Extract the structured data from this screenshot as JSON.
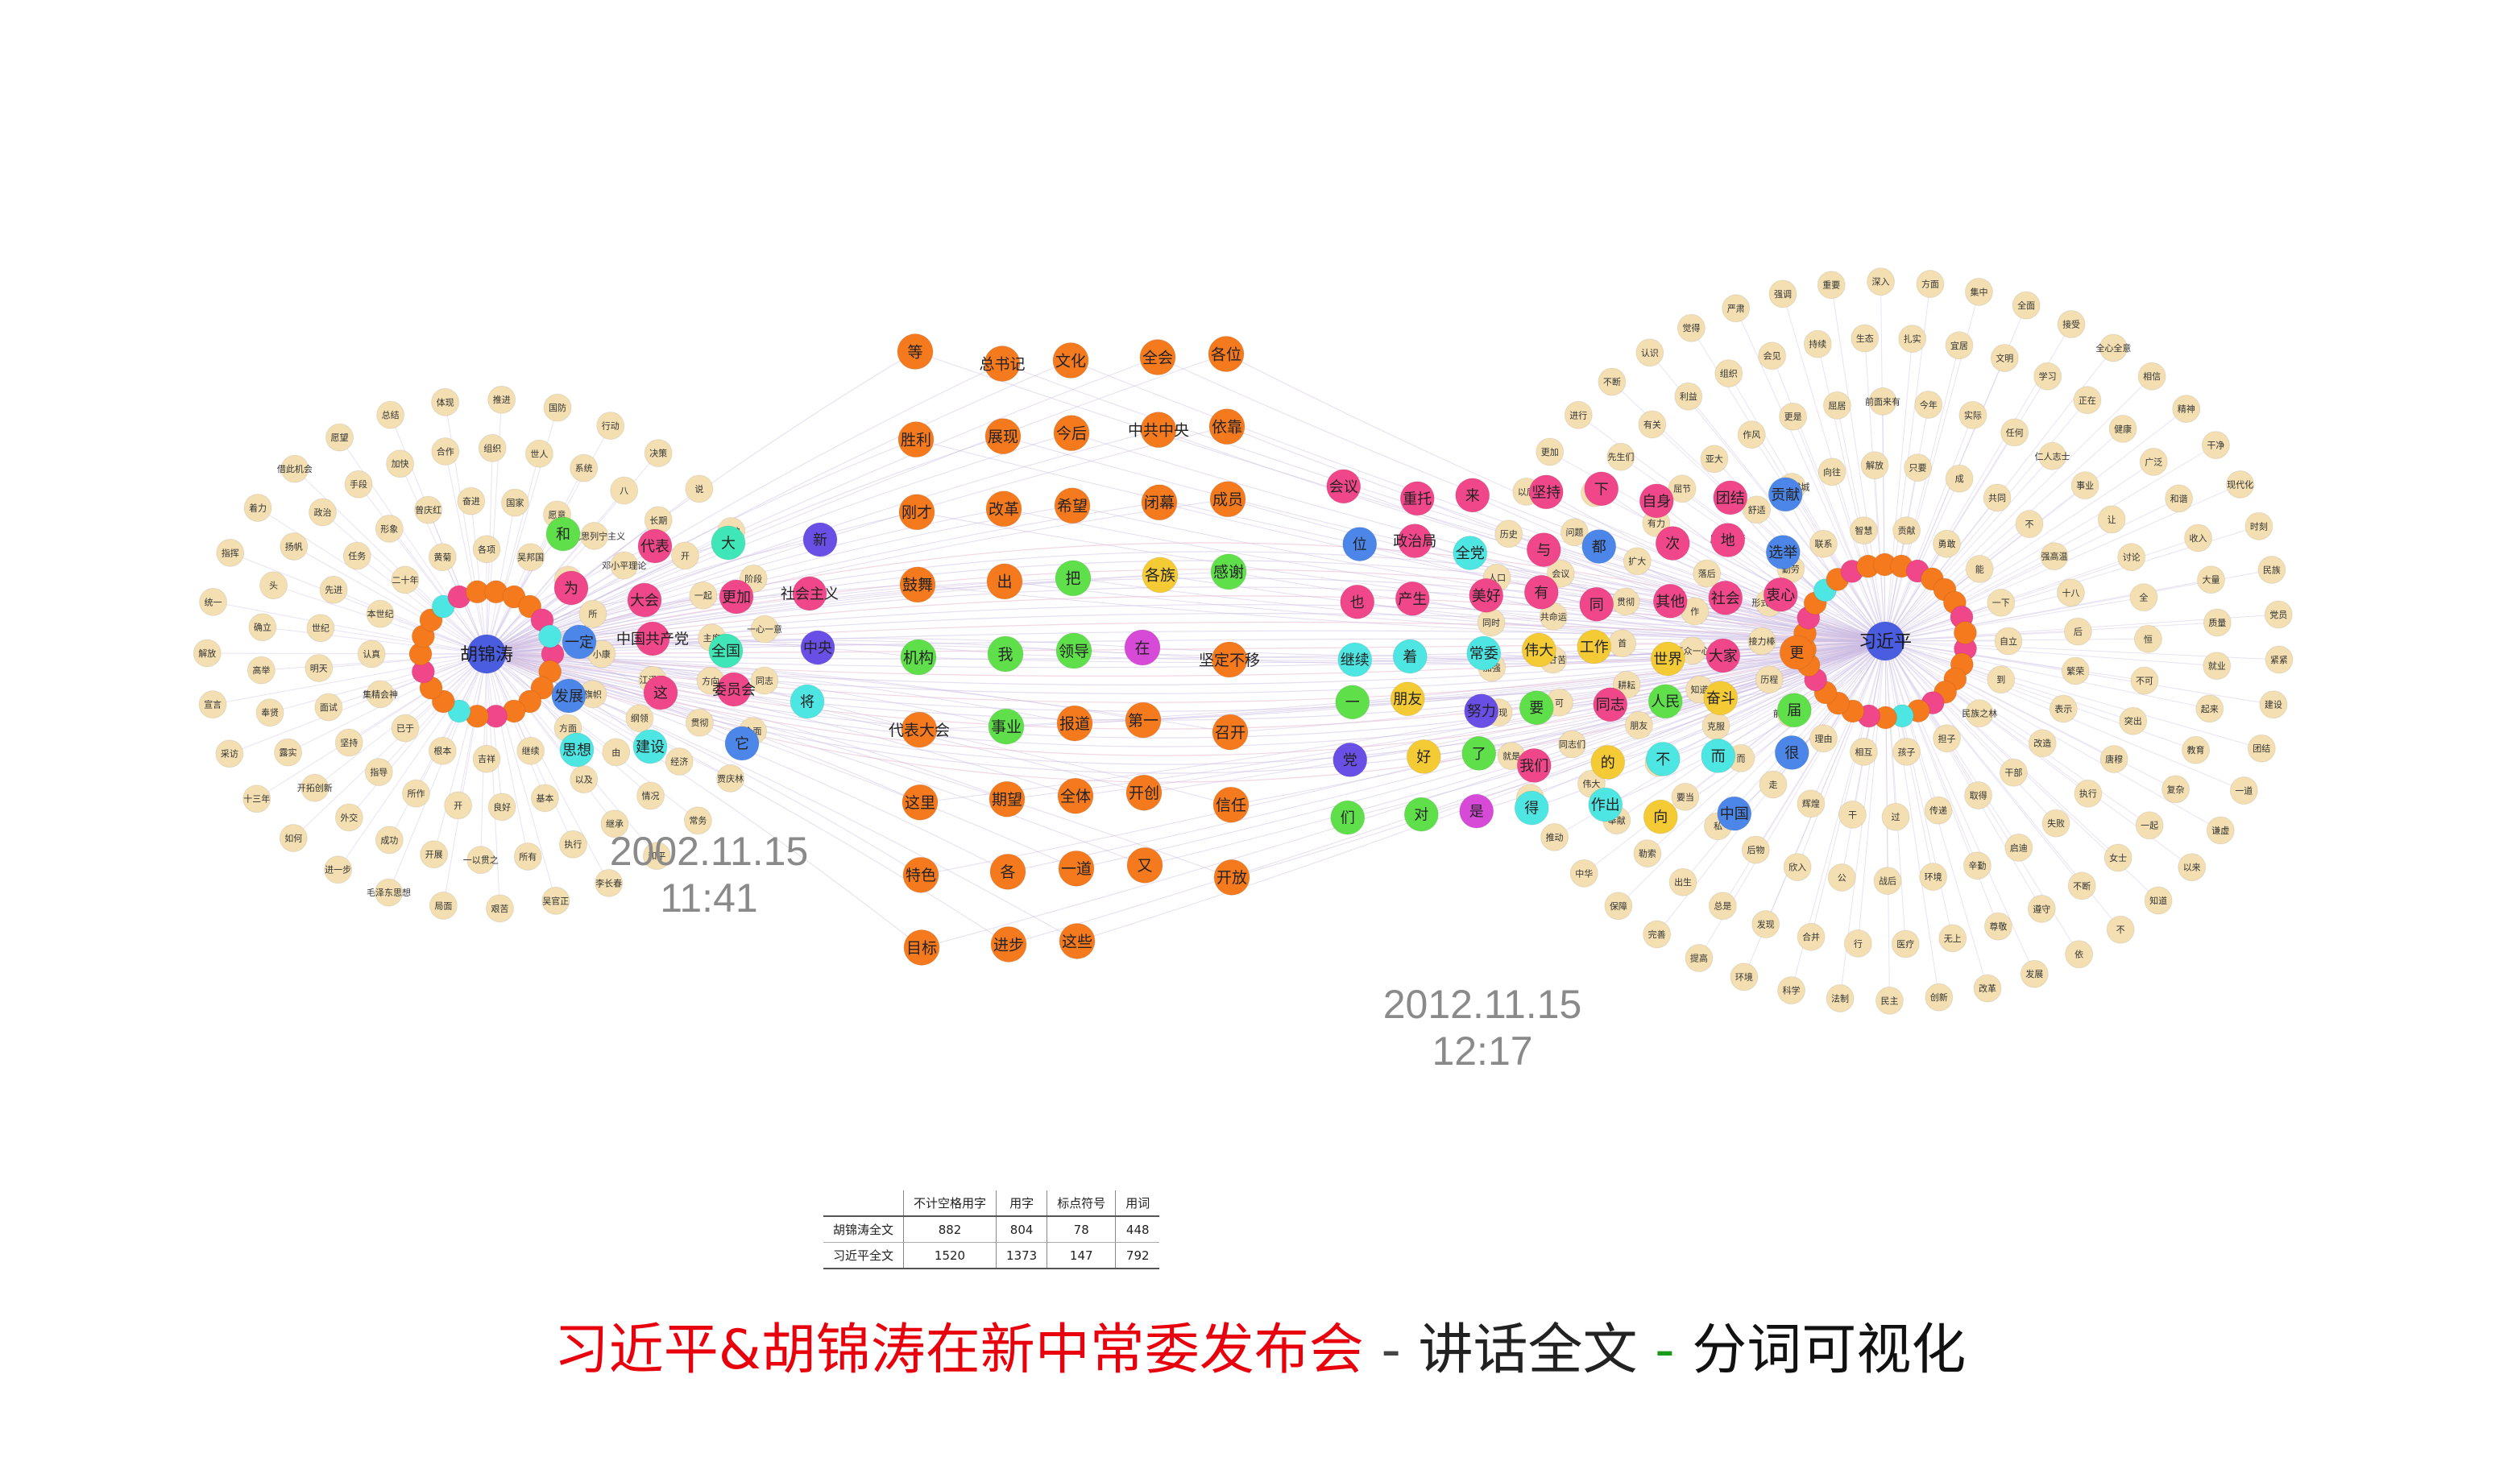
{
  "title": {
    "part1": "习近平&胡锦涛在新中常委发布会",
    "sep1": " - ",
    "part2": "讲话全文",
    "sep2": " - ",
    "part3": "分词可视化",
    "colors": {
      "part1": "#e8000c",
      "sep1": "#444444",
      "part2": "#222222",
      "sep2": "#1a9a1a",
      "part3": "#111111"
    }
  },
  "timestamps": {
    "left": {
      "date": "2002.11.15",
      "time": "11:41"
    },
    "right": {
      "date": "2012.11.15",
      "time": "12:17"
    }
  },
  "stats_table": {
    "columns": [
      "",
      "不计空格用字",
      "用字",
      "标点符号",
      "用词"
    ],
    "rows": [
      [
        "胡锦涛全文",
        "882",
        "804",
        "78",
        "448"
      ],
      [
        "习近平全文",
        "1520",
        "1373",
        "147",
        "792"
      ]
    ]
  },
  "network": {
    "hubs": [
      {
        "id": "hu",
        "label": "胡锦涛",
        "color": "#4a5ce0"
      },
      {
        "id": "xi",
        "label": "习近平",
        "color": "#4a5ce0"
      }
    ],
    "colors": {
      "peripheral": "#f3dfb1",
      "orange": "#f57a1e",
      "pink": "#f0468a",
      "purple": "#6a4fe6",
      "blue": "#4c86e8",
      "cyan": "#4de6e2",
      "green": "#5fe04a",
      "yellow": "#f5cb35",
      "teal": "#3fe6b8",
      "magenta": "#d74ad8",
      "edge": "#b9a9d6"
    },
    "left_peripheral": [
      "小康",
      "旗帜",
      "方面",
      "继续",
      "吉祥",
      "根本",
      "已于",
      "集精会神",
      "认真",
      "本世纪",
      "二十年",
      "黄菊",
      "各项",
      "吴邦国",
      "罗干",
      "所",
      "江泽民",
      "纲领",
      "由",
      "以及",
      "基本",
      "良好",
      "开",
      "所作",
      "指导",
      "坚持",
      "面试",
      "明天",
      "世纪",
      "先进",
      "任务",
      "形象",
      "曾庆红",
      "奋进",
      "国家",
      "愿意",
      "马克思列宁主义",
      "邓小平理论",
      "周强",
      "工作",
      "贯彻",
      "经济",
      "情况",
      "继承",
      "执行",
      "所有",
      "一以贯之",
      "开展",
      "成功",
      "外交",
      "开拓创新",
      "露实",
      "奉贤",
      "高举",
      "确立",
      "头",
      "扬帆",
      "政治",
      "手段",
      "加快",
      "合作",
      "组织",
      "世人",
      "系统",
      "八",
      "长期",
      "开",
      "一起",
      "主席",
      "方向",
      "贾庆林",
      "常务",
      "和平",
      "李长春",
      "吴官正",
      "艰苦",
      "局面",
      "毛泽东思想",
      "进一步",
      "如何",
      "十三年",
      "采访",
      "宣言",
      "解放",
      "统一",
      "指挥",
      "着力",
      "借此机会",
      "愿望",
      "总结",
      "体现",
      "推进",
      "国防",
      "行动",
      "决策",
      "说",
      "精神",
      "阶段",
      "一心一意",
      "同志",
      "全面"
    ],
    "right_peripheral": [
      "自立",
      "到",
      "民族之林",
      "担子",
      "孩子",
      "相互",
      "理由",
      "前赴后继",
      "历程",
      "接力棒",
      "形式主义",
      "勤劳",
      "联系",
      "智慧",
      "贡献",
      "勇敢",
      "能",
      "一下",
      "繁荣",
      "表示",
      "改造",
      "干部",
      "取得",
      "传递",
      "过",
      "干",
      "辉煌",
      "走",
      "而",
      "克服",
      "知道",
      "万众一心",
      "作",
      "落后",
      "历久弥新",
      "舒适",
      "众志成城",
      "向往",
      "解放",
      "只要",
      "成",
      "共同",
      "不",
      "强高温",
      "十八",
      "后",
      "突出",
      "唐穆",
      "执行",
      "失败",
      "启迪",
      "辛勤",
      "环境",
      "战后",
      "公",
      "欣入",
      "后物",
      "私",
      "要当",
      "拯救",
      "朋友",
      "耕耘",
      "首",
      "贯彻",
      "扩大",
      "有力",
      "屈节",
      "亚大",
      "作风",
      "更是",
      "屈居",
      "前面来有",
      "今年",
      "实际",
      "任何",
      "仁人志士",
      "事业",
      "让",
      "讨论",
      "全",
      "恒",
      "不可",
      "复杂",
      "一起",
      "女士",
      "不断",
      "遵守",
      "尊敬",
      "无上",
      "医疗",
      "行",
      "合并",
      "发现",
      "总是",
      "出生",
      "勒索",
      "奉献",
      "伟大",
      "同志们",
      "可",
      "同甘苦",
      "共命运",
      "会议",
      "问题",
      "看法",
      "先生们",
      "有关",
      "利益",
      "组织",
      "会见",
      "持续",
      "生态",
      "扎实",
      "宜居",
      "文明",
      "学习",
      "正在",
      "健康",
      "广泛",
      "和谐",
      "收入",
      "大量",
      "质量",
      "就业",
      "起来",
      "教育",
      "以来",
      "知道",
      "不",
      "依",
      "发展",
      "改革",
      "创新",
      "民主",
      "法制",
      "科学",
      "环境",
      "提高",
      "完善",
      "保障",
      "中华",
      "推动",
      "关心",
      "就是",
      "实现",
      "加强",
      "同时",
      "人口",
      "历史",
      "以后",
      "更加",
      "进行",
      "不断",
      "认识",
      "觉得",
      "严肃",
      "强调",
      "重要",
      "深入",
      "方面",
      "集中",
      "全面",
      "接受",
      "全心全意",
      "相信",
      "精神",
      "干净",
      "现代化",
      "时刻",
      "民族",
      "党员",
      "紧紧",
      "建设",
      "团结",
      "一道",
      "谦虚",
      "谨慎",
      "坚持",
      "锐意",
      "进取"
    ],
    "left_cluster": [
      {
        "label": "和",
        "c": "green"
      },
      {
        "label": "代表",
        "c": "pink"
      },
      {
        "label": "大",
        "c": "teal"
      },
      {
        "label": "新",
        "c": "purple"
      },
      {
        "label": "为",
        "c": "pink"
      },
      {
        "label": "大会",
        "c": "pink"
      },
      {
        "label": "更加",
        "c": "pink"
      },
      {
        "label": "社会主义",
        "c": "pink"
      },
      {
        "label": "一定",
        "c": "blue"
      },
      {
        "label": "中国共产党",
        "c": "pink"
      },
      {
        "label": "全国",
        "c": "teal"
      },
      {
        "label": "中央",
        "c": "purple"
      },
      {
        "label": "发展",
        "c": "blue"
      },
      {
        "label": "这",
        "c": "pink"
      },
      {
        "label": "委员会",
        "c": "pink"
      },
      {
        "label": "将",
        "c": "cyan"
      },
      {
        "label": "思想",
        "c": "cyan"
      },
      {
        "label": "建设",
        "c": "cyan"
      },
      {
        "label": "它",
        "c": "blue"
      }
    ],
    "middle_cluster": [
      {
        "label": "等",
        "c": "orange"
      },
      {
        "label": "总书记",
        "c": "orange"
      },
      {
        "label": "文化",
        "c": "orange"
      },
      {
        "label": "全会",
        "c": "orange"
      },
      {
        "label": "各位",
        "c": "orange"
      },
      {
        "label": "胜利",
        "c": "orange"
      },
      {
        "label": "展现",
        "c": "orange"
      },
      {
        "label": "今后",
        "c": "orange"
      },
      {
        "label": "中共中央",
        "c": "orange"
      },
      {
        "label": "依靠",
        "c": "orange"
      },
      {
        "label": "刚才",
        "c": "orange"
      },
      {
        "label": "改革",
        "c": "orange"
      },
      {
        "label": "希望",
        "c": "orange"
      },
      {
        "label": "闭幕",
        "c": "orange"
      },
      {
        "label": "成员",
        "c": "orange"
      },
      {
        "label": "鼓舞",
        "c": "orange"
      },
      {
        "label": "出",
        "c": "orange"
      },
      {
        "label": "把",
        "c": "green"
      },
      {
        "label": "各族",
        "c": "yellow"
      },
      {
        "label": "感谢",
        "c": "green"
      },
      {
        "label": "机构",
        "c": "green"
      },
      {
        "label": "我",
        "c": "green"
      },
      {
        "label": "领导",
        "c": "green"
      },
      {
        "label": "在",
        "c": "magenta"
      },
      {
        "label": "坚定不移",
        "c": "orange"
      },
      {
        "label": "代表大会",
        "c": "orange"
      },
      {
        "label": "事业",
        "c": "green"
      },
      {
        "label": "报道",
        "c": "orange"
      },
      {
        "label": "第一",
        "c": "orange"
      },
      {
        "label": "召开",
        "c": "orange"
      },
      {
        "label": "这里",
        "c": "orange"
      },
      {
        "label": "期望",
        "c": "orange"
      },
      {
        "label": "全体",
        "c": "orange"
      },
      {
        "label": "开创",
        "c": "orange"
      },
      {
        "label": "信任",
        "c": "orange"
      },
      {
        "label": "特色",
        "c": "orange"
      },
      {
        "label": "各",
        "c": "orange"
      },
      {
        "label": "一道",
        "c": "orange"
      },
      {
        "label": "又",
        "c": "orange"
      },
      {
        "label": "开放",
        "c": "orange"
      },
      {
        "label": "目标",
        "c": "orange"
      },
      {
        "label": "进步",
        "c": "orange"
      },
      {
        "label": "这些",
        "c": "orange"
      }
    ],
    "right_cluster": [
      {
        "label": "会议",
        "c": "pink"
      },
      {
        "label": "重托",
        "c": "pink"
      },
      {
        "label": "来",
        "c": "pink"
      },
      {
        "label": "坚持",
        "c": "pink"
      },
      {
        "label": "下",
        "c": "pink"
      },
      {
        "label": "自身",
        "c": "pink"
      },
      {
        "label": "团结",
        "c": "pink"
      },
      {
        "label": "贡献",
        "c": "blue"
      },
      {
        "label": "位",
        "c": "blue"
      },
      {
        "label": "政治局",
        "c": "pink"
      },
      {
        "label": "全党",
        "c": "cyan"
      },
      {
        "label": "与",
        "c": "pink"
      },
      {
        "label": "都",
        "c": "blue"
      },
      {
        "label": "次",
        "c": "pink"
      },
      {
        "label": "地",
        "c": "pink"
      },
      {
        "label": "选举",
        "c": "blue"
      },
      {
        "label": "也",
        "c": "pink"
      },
      {
        "label": "产生",
        "c": "pink"
      },
      {
        "label": "美好",
        "c": "pink"
      },
      {
        "label": "有",
        "c": "pink"
      },
      {
        "label": "同",
        "c": "pink"
      },
      {
        "label": "其他",
        "c": "pink"
      },
      {
        "label": "社会",
        "c": "pink"
      },
      {
        "label": "衷心",
        "c": "pink"
      },
      {
        "label": "继续",
        "c": "cyan"
      },
      {
        "label": "着",
        "c": "cyan"
      },
      {
        "label": "常委",
        "c": "cyan"
      },
      {
        "label": "伟大",
        "c": "yellow"
      },
      {
        "label": "工作",
        "c": "yellow"
      },
      {
        "label": "世界",
        "c": "yellow"
      },
      {
        "label": "大家",
        "c": "pink"
      },
      {
        "label": "更",
        "c": "orange"
      },
      {
        "label": "一",
        "c": "green"
      },
      {
        "label": "朋友",
        "c": "yellow"
      },
      {
        "label": "努力",
        "c": "purple"
      },
      {
        "label": "要",
        "c": "green"
      },
      {
        "label": "同志",
        "c": "pink"
      },
      {
        "label": "人民",
        "c": "green"
      },
      {
        "label": "奋斗",
        "c": "yellow"
      },
      {
        "label": "届",
        "c": "green"
      },
      {
        "label": "党",
        "c": "purple"
      },
      {
        "label": "好",
        "c": "yellow"
      },
      {
        "label": "了",
        "c": "green"
      },
      {
        "label": "我们",
        "c": "pink"
      },
      {
        "label": "的",
        "c": "yellow"
      },
      {
        "label": "不",
        "c": "cyan"
      },
      {
        "label": "而",
        "c": "cyan"
      },
      {
        "label": "很",
        "c": "blue"
      },
      {
        "label": "们",
        "c": "green"
      },
      {
        "label": "对",
        "c": "green"
      },
      {
        "label": "是",
        "c": "magenta"
      },
      {
        "label": "得",
        "c": "cyan"
      },
      {
        "label": "作出",
        "c": "cyan"
      },
      {
        "label": "向",
        "c": "yellow"
      },
      {
        "label": "中国",
        "c": "blue"
      }
    ]
  }
}
